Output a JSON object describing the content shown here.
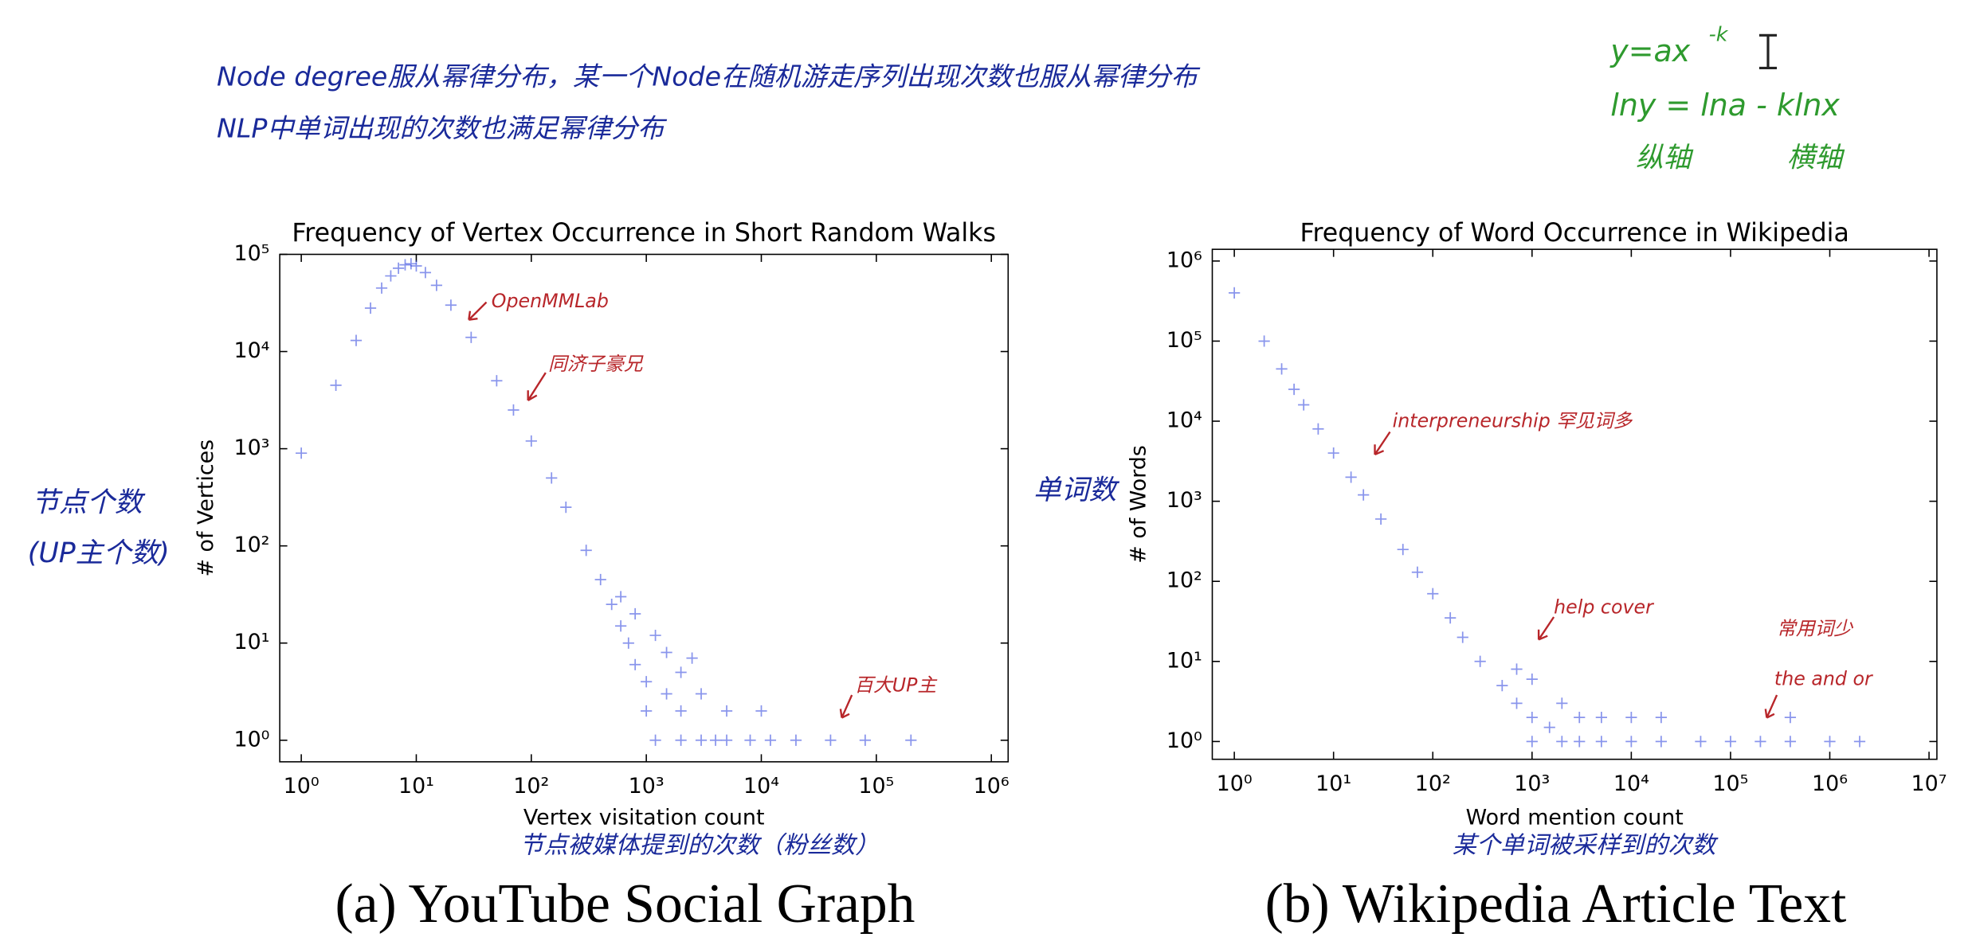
{
  "notes": {
    "line1": "Node degree服从幂律分布，某一个Node在随机游走序列出现次数也服从幂律分布",
    "line2": "NLP中单词出现的次数也满足幂律分布",
    "formula_base": "y=ax",
    "formula_exponent": "-k",
    "log_formula": "lny = lna - klnx",
    "y_axis_note": "纵轴",
    "x_axis_note": "横轴"
  },
  "chart_data": [
    {
      "type": "scatter",
      "title": "Frequency of Vertex Occurrence in Short Random Walks",
      "xlabel": "Vertex visitation count",
      "ylabel": "# of Vertices",
      "caption": "(a) YouTube Social Graph",
      "ylabel_notes": [
        "节点个数",
        "(UP主个数)"
      ],
      "xlabel_note": "节点被媒体提到的次数（粉丝数）",
      "annotations": [
        "OpenMMLab",
        "同济子豪兄",
        "百大UP主"
      ],
      "xscale": "log",
      "yscale": "log",
      "color": "#3a4fe0",
      "xlim": [
        0.65,
        1400000
      ],
      "ylim": [
        0.6,
        100000
      ],
      "xticks": [
        {
          "value": 1,
          "label": "10⁰"
        },
        {
          "value": 10,
          "label": "10¹"
        },
        {
          "value": 100,
          "label": "10²"
        },
        {
          "value": 1000,
          "label": "10³"
        },
        {
          "value": 10000,
          "label": "10⁴"
        },
        {
          "value": 100000,
          "label": "10⁵"
        },
        {
          "value": 1000000,
          "label": "10⁶"
        }
      ],
      "yticks": [
        {
          "value": 1,
          "label": "10⁰"
        },
        {
          "value": 10,
          "label": "10¹"
        },
        {
          "value": 100,
          "label": "10²"
        },
        {
          "value": 1000,
          "label": "10³"
        },
        {
          "value": 10000,
          "label": "10⁴"
        },
        {
          "value": 100000,
          "label": "10⁵"
        }
      ],
      "x": [
        1,
        2,
        3,
        4,
        5,
        6,
        7,
        8,
        9,
        10,
        12,
        15,
        20,
        30,
        50,
        70,
        100,
        150,
        200,
        300,
        400,
        500,
        600,
        700,
        800,
        1000,
        1000,
        1500,
        2000,
        1200,
        2000,
        3000,
        5000,
        8000,
        12000,
        20000,
        40000,
        80000,
        200000,
        1500,
        2000,
        3000,
        5000,
        10000,
        4000,
        600,
        800,
        1200,
        2500
      ],
      "values": [
        900,
        4500,
        13000,
        28000,
        45000,
        60000,
        72000,
        78000,
        80000,
        76000,
        65000,
        48000,
        30000,
        14000,
        5000,
        2500,
        1200,
        500,
        250,
        90,
        45,
        25,
        15,
        10,
        6,
        4,
        2,
        3,
        2,
        1,
        1,
        1,
        1,
        1,
        1,
        1,
        1,
        1,
        1,
        8,
        5,
        3,
        2,
        2,
        1,
        30,
        20,
        12,
        7
      ]
    },
    {
      "type": "scatter",
      "title": "Frequency of Word Occurrence in Wikipedia",
      "xlabel": "Word mention count",
      "ylabel": "# of Words",
      "caption": "(b) Wikipedia Article Text",
      "ylabel_notes": [
        "单词数"
      ],
      "xlabel_note": "某个单词被采样到的次数",
      "annotations": [
        "interpreneurship 罕见词多",
        "help cover",
        "常用词少",
        "the and or"
      ],
      "xscale": "log",
      "yscale": "log",
      "color": "#3a4fe0",
      "xlim": [
        0.6,
        12000000
      ],
      "ylim": [
        0.6,
        1400000
      ],
      "xticks": [
        {
          "value": 1,
          "label": "10⁰"
        },
        {
          "value": 10,
          "label": "10¹"
        },
        {
          "value": 100,
          "label": "10²"
        },
        {
          "value": 1000,
          "label": "10³"
        },
        {
          "value": 10000,
          "label": "10⁴"
        },
        {
          "value": 100000,
          "label": "10⁵"
        },
        {
          "value": 1000000,
          "label": "10⁶"
        },
        {
          "value": 10000000,
          "label": "10⁷"
        }
      ],
      "yticks": [
        {
          "value": 1,
          "label": "10⁰"
        },
        {
          "value": 10,
          "label": "10¹"
        },
        {
          "value": 100,
          "label": "10²"
        },
        {
          "value": 1000,
          "label": "10³"
        },
        {
          "value": 10000,
          "label": "10⁴"
        },
        {
          "value": 100000,
          "label": "10⁵"
        },
        {
          "value": 1000000,
          "label": "10⁶"
        }
      ],
      "x": [
        1,
        2,
        3,
        4,
        5,
        7,
        10,
        15,
        20,
        30,
        50,
        70,
        100,
        150,
        200,
        300,
        500,
        700,
        1000,
        1500,
        2000,
        1000,
        3000,
        5000,
        10000,
        20000,
        50000,
        100000,
        200000,
        400000,
        1000000,
        2000000,
        700,
        1000,
        2000,
        3000,
        5000,
        10000,
        20000,
        400000
      ],
      "values": [
        400000,
        100000,
        45000,
        25000,
        16000,
        8000,
        4000,
        2000,
        1200,
        600,
        250,
        130,
        70,
        35,
        20,
        10,
        5,
        3,
        2,
        1.5,
        1,
        1,
        1,
        1,
        1,
        1,
        1,
        1,
        1,
        1,
        1,
        1,
        8,
        6,
        3,
        2,
        2,
        2,
        2,
        2
      ]
    }
  ]
}
